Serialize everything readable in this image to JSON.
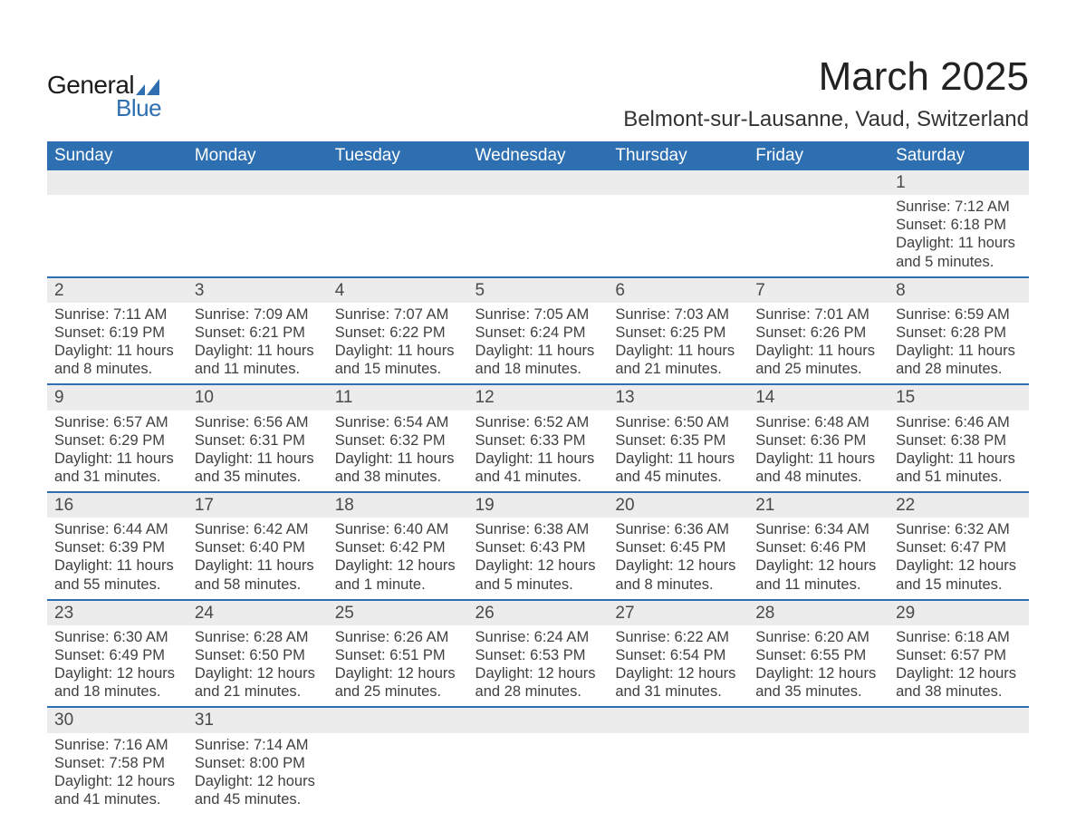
{
  "brand": {
    "top": "General",
    "bottom": "Blue",
    "mark_color": "#2d6fb0"
  },
  "title": "March 2025",
  "location": "Belmont-sur-Lausanne, Vaud, Switzerland",
  "colors": {
    "header_bg": "#2d6fb0",
    "header_text": "#ffffff",
    "daynum_bg": "#ececec",
    "row_border": "#2d6fb0",
    "body_text": "#404040",
    "page_bg": "#ffffff"
  },
  "typography": {
    "title_fontsize": 44,
    "location_fontsize": 24,
    "weekday_fontsize": 19,
    "daynum_fontsize": 19,
    "cell_fontsize": 16.5,
    "font_family": "Arial"
  },
  "calendar": {
    "type": "table",
    "weekdays": [
      "Sunday",
      "Monday",
      "Tuesday",
      "Wednesday",
      "Thursday",
      "Friday",
      "Saturday"
    ],
    "weeks": [
      [
        null,
        null,
        null,
        null,
        null,
        null,
        {
          "d": "1",
          "sunrise": "7:12 AM",
          "sunset": "6:18 PM",
          "daylight": "11 hours and 5 minutes."
        }
      ],
      [
        {
          "d": "2",
          "sunrise": "7:11 AM",
          "sunset": "6:19 PM",
          "daylight": "11 hours and 8 minutes."
        },
        {
          "d": "3",
          "sunrise": "7:09 AM",
          "sunset": "6:21 PM",
          "daylight": "11 hours and 11 minutes."
        },
        {
          "d": "4",
          "sunrise": "7:07 AM",
          "sunset": "6:22 PM",
          "daylight": "11 hours and 15 minutes."
        },
        {
          "d": "5",
          "sunrise": "7:05 AM",
          "sunset": "6:24 PM",
          "daylight": "11 hours and 18 minutes."
        },
        {
          "d": "6",
          "sunrise": "7:03 AM",
          "sunset": "6:25 PM",
          "daylight": "11 hours and 21 minutes."
        },
        {
          "d": "7",
          "sunrise": "7:01 AM",
          "sunset": "6:26 PM",
          "daylight": "11 hours and 25 minutes."
        },
        {
          "d": "8",
          "sunrise": "6:59 AM",
          "sunset": "6:28 PM",
          "daylight": "11 hours and 28 minutes."
        }
      ],
      [
        {
          "d": "9",
          "sunrise": "6:57 AM",
          "sunset": "6:29 PM",
          "daylight": "11 hours and 31 minutes."
        },
        {
          "d": "10",
          "sunrise": "6:56 AM",
          "sunset": "6:31 PM",
          "daylight": "11 hours and 35 minutes."
        },
        {
          "d": "11",
          "sunrise": "6:54 AM",
          "sunset": "6:32 PM",
          "daylight": "11 hours and 38 minutes."
        },
        {
          "d": "12",
          "sunrise": "6:52 AM",
          "sunset": "6:33 PM",
          "daylight": "11 hours and 41 minutes."
        },
        {
          "d": "13",
          "sunrise": "6:50 AM",
          "sunset": "6:35 PM",
          "daylight": "11 hours and 45 minutes."
        },
        {
          "d": "14",
          "sunrise": "6:48 AM",
          "sunset": "6:36 PM",
          "daylight": "11 hours and 48 minutes."
        },
        {
          "d": "15",
          "sunrise": "6:46 AM",
          "sunset": "6:38 PM",
          "daylight": "11 hours and 51 minutes."
        }
      ],
      [
        {
          "d": "16",
          "sunrise": "6:44 AM",
          "sunset": "6:39 PM",
          "daylight": "11 hours and 55 minutes."
        },
        {
          "d": "17",
          "sunrise": "6:42 AM",
          "sunset": "6:40 PM",
          "daylight": "11 hours and 58 minutes."
        },
        {
          "d": "18",
          "sunrise": "6:40 AM",
          "sunset": "6:42 PM",
          "daylight": "12 hours and 1 minute."
        },
        {
          "d": "19",
          "sunrise": "6:38 AM",
          "sunset": "6:43 PM",
          "daylight": "12 hours and 5 minutes."
        },
        {
          "d": "20",
          "sunrise": "6:36 AM",
          "sunset": "6:45 PM",
          "daylight": "12 hours and 8 minutes."
        },
        {
          "d": "21",
          "sunrise": "6:34 AM",
          "sunset": "6:46 PM",
          "daylight": "12 hours and 11 minutes."
        },
        {
          "d": "22",
          "sunrise": "6:32 AM",
          "sunset": "6:47 PM",
          "daylight": "12 hours and 15 minutes."
        }
      ],
      [
        {
          "d": "23",
          "sunrise": "6:30 AM",
          "sunset": "6:49 PM",
          "daylight": "12 hours and 18 minutes."
        },
        {
          "d": "24",
          "sunrise": "6:28 AM",
          "sunset": "6:50 PM",
          "daylight": "12 hours and 21 minutes."
        },
        {
          "d": "25",
          "sunrise": "6:26 AM",
          "sunset": "6:51 PM",
          "daylight": "12 hours and 25 minutes."
        },
        {
          "d": "26",
          "sunrise": "6:24 AM",
          "sunset": "6:53 PM",
          "daylight": "12 hours and 28 minutes."
        },
        {
          "d": "27",
          "sunrise": "6:22 AM",
          "sunset": "6:54 PM",
          "daylight": "12 hours and 31 minutes."
        },
        {
          "d": "28",
          "sunrise": "6:20 AM",
          "sunset": "6:55 PM",
          "daylight": "12 hours and 35 minutes."
        },
        {
          "d": "29",
          "sunrise": "6:18 AM",
          "sunset": "6:57 PM",
          "daylight": "12 hours and 38 minutes."
        }
      ],
      [
        {
          "d": "30",
          "sunrise": "7:16 AM",
          "sunset": "7:58 PM",
          "daylight": "12 hours and 41 minutes."
        },
        {
          "d": "31",
          "sunrise": "7:14 AM",
          "sunset": "8:00 PM",
          "daylight": "12 hours and 45 minutes."
        },
        null,
        null,
        null,
        null,
        null
      ]
    ],
    "labels": {
      "sunrise": "Sunrise:",
      "sunset": "Sunset:",
      "daylight": "Daylight:"
    }
  }
}
